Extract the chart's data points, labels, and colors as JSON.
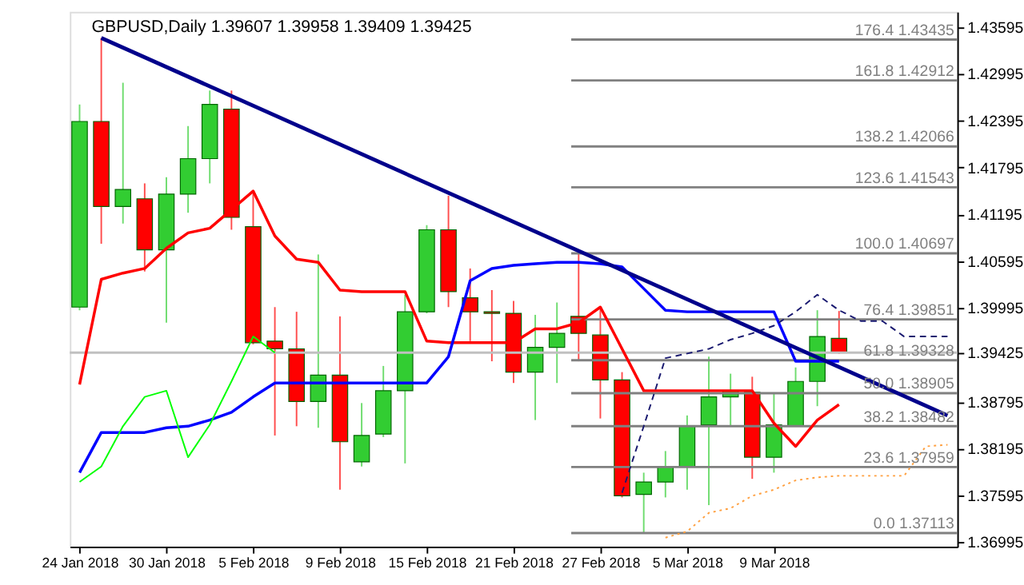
{
  "chart_data": {
    "type": "candlestick",
    "title": "GBPUSD,Daily  1.39607 1.39958 1.39409 1.39425",
    "categories": [
      "24 Jan 2018",
      null,
      null,
      null,
      "30 Jan 2018",
      null,
      null,
      null,
      "5 Feb 2018",
      null,
      null,
      null,
      "9 Feb 2018",
      null,
      null,
      null,
      "15 Feb 2018",
      null,
      null,
      null,
      "21 Feb 2018",
      null,
      null,
      null,
      "27 Feb 2018",
      null,
      null,
      null,
      "5 Mar 2018",
      null,
      null,
      null,
      "9 Mar 2018",
      null,
      null,
      null,
      null,
      null,
      null,
      null,
      null
    ],
    "ohlc": [
      [
        1.40008,
        1.42604,
        1.39968,
        1.42386
      ],
      [
        1.42386,
        1.43456,
        1.4082,
        1.41296
      ],
      [
        1.41296,
        1.42882,
        1.41078,
        1.41514
      ],
      [
        1.41395,
        1.41593,
        1.40464,
        1.40741
      ],
      [
        1.40741,
        1.41673,
        1.39809,
        1.41455
      ],
      [
        1.41455,
        1.42327,
        1.41217,
        1.4191
      ],
      [
        1.4191,
        1.42782,
        1.41593,
        1.42604
      ],
      [
        1.42545,
        1.42782,
        1.40999,
        1.41157
      ],
      [
        1.41038,
        1.41494,
        1.39532,
        1.39552
      ],
      [
        1.39572,
        1.40008,
        1.38363,
        1.39473
      ],
      [
        1.39473,
        1.39948,
        1.38482,
        1.38799
      ],
      [
        1.38799,
        1.40682,
        1.38462,
        1.39136
      ],
      [
        1.39136,
        1.39889,
        1.37669,
        1.38283
      ],
      [
        1.38026,
        1.38779,
        1.37966,
        1.38363
      ],
      [
        1.38382,
        1.39254,
        1.38343,
        1.38937
      ],
      [
        1.38937,
        1.40166,
        1.38006,
        1.39948
      ],
      [
        1.39948,
        1.41058,
        1.39928,
        1.40999
      ],
      [
        1.40999,
        1.41435,
        1.40008,
        1.40206
      ],
      [
        1.40127,
        1.40503,
        1.39572,
        1.39948
      ],
      [
        1.39948,
        1.40226,
        1.39314,
        1.39928
      ],
      [
        1.39928,
        1.40087,
        1.39036,
        1.39175
      ],
      [
        1.39175,
        1.39909,
        1.38561,
        1.39492
      ],
      [
        1.39492,
        1.40067,
        1.39036,
        1.39671
      ],
      [
        1.39889,
        1.40697,
        1.39314,
        1.39671
      ],
      [
        1.39651,
        1.40008,
        1.38581,
        1.39076
      ],
      [
        1.39076,
        1.39175,
        1.3757,
        1.3759
      ],
      [
        1.37609,
        1.37887,
        1.37113,
        1.37768
      ],
      [
        1.37768,
        1.38164,
        1.3757,
        1.37966
      ],
      [
        1.37966,
        1.3862,
        1.37669,
        1.38482
      ],
      [
        1.38501,
        1.39373,
        1.37471,
        1.38858
      ],
      [
        1.38858,
        1.39155,
        1.38482,
        1.38937
      ],
      [
        1.38918,
        1.39116,
        1.37808,
        1.38085
      ],
      [
        1.38085,
        1.38898,
        1.37887,
        1.38501
      ],
      [
        1.38482,
        1.39235,
        1.38482,
        1.39056
      ],
      [
        1.39056,
        1.39968,
        1.38739,
        1.39631
      ],
      [
        1.39607,
        1.39958,
        1.39409,
        1.39425
      ],
      null,
      null,
      null,
      null,
      null
    ],
    "colors": [
      "#32cd32",
      "#ff0000",
      "#32cd32",
      "#ff0000",
      "#32cd32",
      "#32cd32",
      "#32cd32",
      "#ff0000",
      "#ff0000",
      "#ff0000",
      "#ff0000",
      "#32cd32",
      "#ff0000",
      "#32cd32",
      "#32cd32",
      "#32cd32",
      "#32cd32",
      "#ff0000",
      "#ff0000",
      "#ff0000",
      "#ff0000",
      "#32cd32",
      "#32cd32",
      "#ff0000",
      "#ff0000",
      "#ff0000",
      "#32cd32",
      "#32cd32",
      "#32cd32",
      "#32cd32",
      "#32cd32",
      "#ff0000",
      "#32cd32",
      "#32cd32",
      "#32cd32",
      "#ff0000",
      null,
      null,
      null,
      null,
      null
    ],
    "series": [
      {
        "type": "line",
        "color": "#ff0000",
        "values": [
          1.39017,
          1.40364,
          1.40444,
          1.40503,
          1.40761,
          1.40959,
          1.41018,
          1.41256,
          1.41494,
          1.40919,
          1.40622,
          1.40582,
          1.40226,
          1.40206,
          1.40206,
          1.40206,
          1.39572,
          1.39552,
          1.39552,
          1.39552,
          1.39552,
          1.3973,
          1.3973,
          1.39809,
          1.40008,
          1.39473,
          1.38937,
          1.38937,
          1.38937,
          1.38937,
          1.38937,
          1.38937,
          1.38521,
          1.38224,
          1.38561,
          1.38759,
          null,
          null,
          null,
          null,
          null
        ]
      },
      {
        "type": "line",
        "color": "#0000ff",
        "values": [
          1.37887,
          1.38402,
          1.38402,
          1.38402,
          1.38462,
          1.38482,
          1.38561,
          1.3866,
          1.38858,
          1.39036,
          1.39036,
          1.39036,
          1.39036,
          1.39036,
          1.39036,
          1.39036,
          1.39036,
          1.39373,
          1.40345,
          1.40503,
          1.40543,
          1.40563,
          1.40582,
          1.40582,
          1.40563,
          1.40523,
          1.40245,
          1.39968,
          1.39948,
          1.39948,
          1.39948,
          1.39948,
          1.39948,
          1.39314,
          1.39314,
          1.39314,
          null,
          null,
          null,
          null,
          null
        ]
      },
      {
        "type": "line",
        "color": "#00ff00",
        "values": [
          1.37768,
          1.37966,
          1.38482,
          1.38858,
          1.38937,
          1.38085,
          1.38501,
          1.39056,
          1.39631,
          1.39425,
          null,
          null,
          null,
          null,
          null,
          null,
          null,
          null,
          null,
          null,
          null,
          null,
          null,
          null,
          null,
          null,
          null,
          null,
          null,
          null,
          null,
          null,
          null,
          null,
          null,
          null,
          null,
          null,
          null,
          null,
          null
        ]
      },
      {
        "type": "line",
        "color": "#00008b",
        "values": [
          null,
          1.43456,
          null,
          null,
          null,
          null,
          null,
          null,
          null,
          null,
          null,
          null,
          null,
          null,
          null,
          null,
          null,
          null,
          null,
          null,
          null,
          null,
          null,
          null,
          null,
          null,
          null,
          null,
          null,
          null,
          null,
          null,
          null,
          null,
          null,
          null,
          null,
          null,
          null,
          null,
          1.3862
        ]
      },
      {
        "type": "line",
        "color": "#191970",
        "line_style": "dashed",
        "values": [
          null,
          null,
          null,
          null,
          null,
          null,
          null,
          null,
          null,
          null,
          null,
          null,
          null,
          null,
          null,
          null,
          null,
          null,
          null,
          null,
          null,
          null,
          null,
          null,
          null,
          1.37629,
          1.38482,
          1.39354,
          1.39413,
          1.39473,
          1.39591,
          1.39671,
          1.3977,
          1.39948,
          1.40166,
          1.39968,
          1.39829,
          1.39829,
          1.39631,
          1.39631,
          1.39631
        ]
      },
      {
        "type": "line",
        "color": "#ffa040",
        "line_style": "dotted",
        "values": [
          null,
          null,
          null,
          null,
          null,
          null,
          null,
          null,
          null,
          null,
          null,
          null,
          null,
          null,
          null,
          null,
          null,
          null,
          null,
          null,
          null,
          null,
          null,
          null,
          null,
          null,
          null,
          1.37054,
          1.37134,
          1.37372,
          1.37431,
          1.3759,
          1.37669,
          1.37788,
          1.37827,
          1.37847,
          1.37847,
          1.37847,
          1.37847,
          1.38224,
          1.38244
        ]
      }
    ],
    "ylim": [
      1.3694,
      1.4379
    ],
    "yticks": [
      1.36995,
      1.37595,
      1.38195,
      1.38795,
      1.39425,
      1.39995,
      1.40595,
      1.41195,
      1.41795,
      1.42395,
      1.42995,
      1.43595
    ],
    "ref_lines": [
      {
        "axis": "y",
        "value": 1.39425,
        "color": "#c0c0c0"
      },
      {
        "axis": "y",
        "value": 1.43435,
        "label": "176.4 1.43435",
        "color": "#808080"
      },
      {
        "axis": "y",
        "value": 1.42912,
        "label": "161.8 1.42912",
        "color": "#808080"
      },
      {
        "axis": "y",
        "value": 1.42066,
        "label": "138.2 1.42066",
        "color": "#808080"
      },
      {
        "axis": "y",
        "value": 1.41543,
        "label": "123.6 1.41543",
        "color": "#808080"
      },
      {
        "axis": "y",
        "value": 1.40697,
        "label": "100.0 1.40697",
        "color": "#808080"
      },
      {
        "axis": "y",
        "value": 1.39851,
        "label": "76.4 1.39851",
        "color": "#808080"
      },
      {
        "axis": "y",
        "value": 1.39328,
        "label": "61.8 1.39328",
        "color": "#808080"
      },
      {
        "axis": "y",
        "value": 1.38905,
        "label": "50.0 1.38905",
        "color": "#808080"
      },
      {
        "axis": "y",
        "value": 1.38482,
        "label": "38.2 1.38482",
        "color": "#808080"
      },
      {
        "axis": "y",
        "value": 1.37959,
        "label": "23.6 1.37959",
        "color": "#808080"
      },
      {
        "axis": "y",
        "value": 1.37113,
        "label": "0.0 1.37113",
        "color": "#808080"
      }
    ],
    "grid": false
  }
}
